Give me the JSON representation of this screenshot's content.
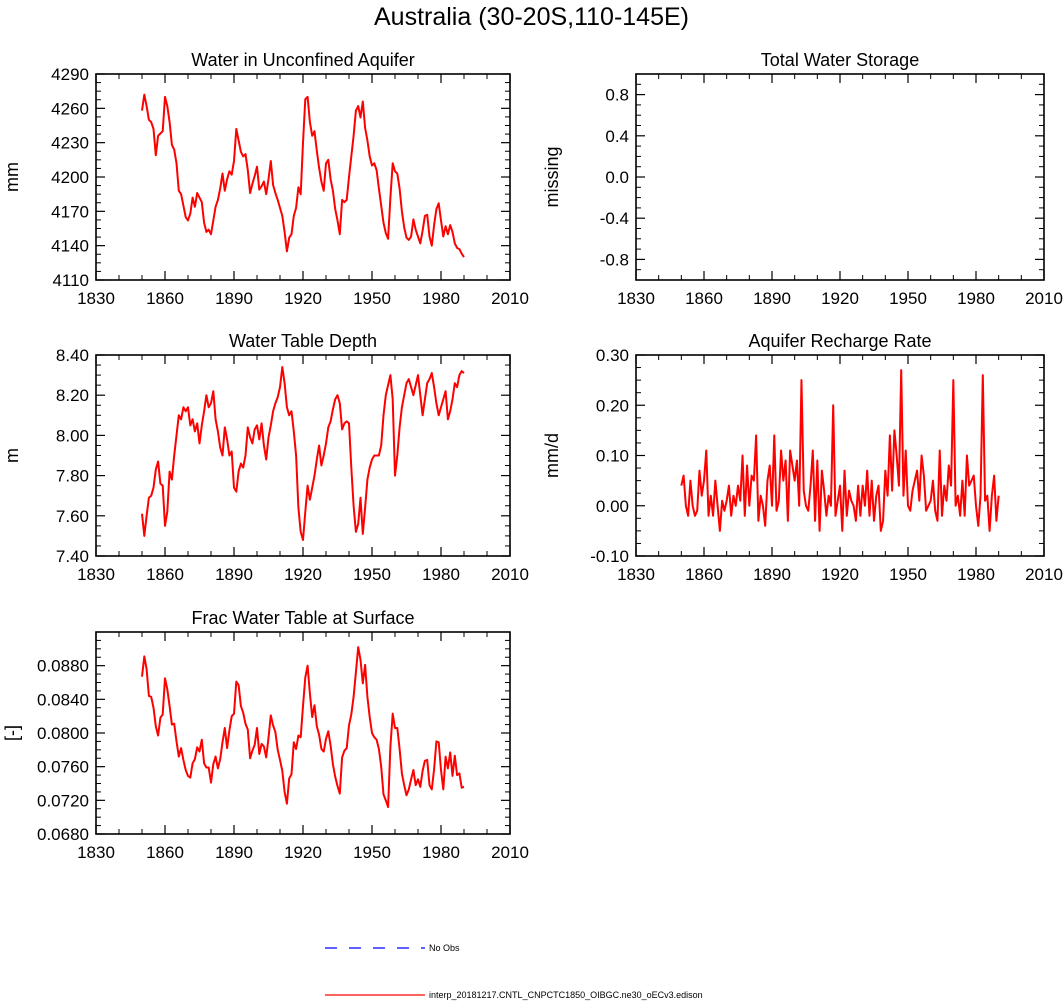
{
  "page": {
    "title": "Australia (30-20S,110-145E)"
  },
  "colors": {
    "series": "#ff0000",
    "obs": "#0000ff",
    "axis": "#000000",
    "background": "#ffffff"
  },
  "legend": {
    "entries": [
      {
        "label": "No Obs",
        "color": "#0000ff",
        "style": "dashed"
      },
      {
        "label": "interp_20181217.CNTL_CNPCTC1850_OIBGC.ne30_oECv3.edison",
        "color": "#ff0000",
        "style": "solid"
      }
    ]
  },
  "chart_data": [
    {
      "id": "water-unconfined-aquifer",
      "type": "line",
      "title": "Water in Unconfined Aquifer",
      "xlabel": "",
      "ylabel": "mm",
      "xlim": [
        1830,
        2010
      ],
      "ylim": [
        4110,
        4290
      ],
      "xticks": [
        1830,
        1860,
        1890,
        1920,
        1950,
        1980,
        2010
      ],
      "yticks": [
        "4110",
        "4140",
        "4170",
        "4200",
        "4230",
        "4260",
        "4290"
      ],
      "yticks_values": [
        4110,
        4140,
        4170,
        4200,
        4230,
        4260,
        4290
      ],
      "series": [
        {
          "name": "interp_20181217.CNTL_CNPCTC1850_OIBGC.ne30_oECv3.edison",
          "x_start": 1850,
          "x_step": 1,
          "values": [
            4258,
            4272,
            4262,
            4250,
            4248,
            4242,
            4219,
            4236,
            4238,
            4240,
            4270,
            4262,
            4248,
            4228,
            4224,
            4212,
            4188,
            4185,
            4175,
            4165,
            4162,
            4168,
            4182,
            4174,
            4186,
            4182,
            4178,
            4160,
            4152,
            4154,
            4150,
            4162,
            4174,
            4180,
            4190,
            4203,
            4188,
            4198,
            4205,
            4202,
            4214,
            4242,
            4232,
            4222,
            4218,
            4220,
            4206,
            4186,
            4194,
            4201,
            4209,
            4189,
            4192,
            4196,
            4185,
            4198,
            4214,
            4193,
            4186,
            4180,
            4173,
            4166,
            4152,
            4135,
            4147,
            4150,
            4166,
            4173,
            4191,
            4185,
            4230,
            4268,
            4270,
            4248,
            4236,
            4240,
            4223,
            4208,
            4196,
            4188,
            4212,
            4215,
            4198,
            4188,
            4172,
            4162,
            4150,
            4180,
            4178,
            4180,
            4200,
            4218,
            4236,
            4258,
            4262,
            4252,
            4266,
            4243,
            4232,
            4218,
            4210,
            4212,
            4206,
            4190,
            4175,
            4160,
            4151,
            4146,
            4182,
            4212,
            4205,
            4203,
            4190,
            4170,
            4156,
            4147,
            4145,
            4148,
            4163,
            4154,
            4148,
            4142,
            4153,
            4166,
            4167,
            4148,
            4140,
            4158,
            4172,
            4177,
            4162,
            4148,
            4157,
            4150,
            4158,
            4152,
            4142,
            4138,
            4137,
            4133,
            4130
          ]
        }
      ]
    },
    {
      "id": "total-water-storage",
      "type": "line",
      "title": "Total Water Storage",
      "xlabel": "",
      "ylabel": "missing",
      "xlim": [
        1830,
        2010
      ],
      "ylim": [
        -1.0,
        1.0
      ],
      "xticks": [
        1830,
        1860,
        1890,
        1920,
        1950,
        1980,
        2010
      ],
      "yticks": [
        "-0.8",
        "-0.4",
        "0.0",
        "0.4",
        "0.8"
      ],
      "yticks_values": [
        -0.8,
        -0.4,
        0.0,
        0.4,
        0.8
      ],
      "series": []
    },
    {
      "id": "water-table-depth",
      "type": "line",
      "title": "Water Table Depth",
      "xlabel": "",
      "ylabel": "m",
      "xlim": [
        1830,
        2010
      ],
      "ylim": [
        7.4,
        8.4
      ],
      "xticks": [
        1830,
        1860,
        1890,
        1920,
        1950,
        1980,
        2010
      ],
      "yticks": [
        "7.40",
        "7.60",
        "7.80",
        "8.00",
        "8.20",
        "8.40"
      ],
      "yticks_values": [
        7.4,
        7.6,
        7.8,
        8.0,
        8.2,
        8.4
      ],
      "series": [
        {
          "name": "interp_20181217.CNTL_CNPCTC1850_OIBGC.ne30_oECv3.edison",
          "x_start": 1850,
          "x_step": 1,
          "values": [
            7.61,
            7.5,
            7.6,
            7.69,
            7.7,
            7.74,
            7.83,
            7.87,
            7.76,
            7.75,
            7.55,
            7.62,
            7.82,
            7.78,
            7.9,
            8.0,
            8.1,
            8.08,
            8.14,
            8.12,
            8.14,
            8.05,
            8.08,
            8.02,
            8.06,
            7.96,
            8.05,
            8.12,
            8.2,
            8.14,
            8.16,
            8.22,
            8.08,
            8.02,
            7.94,
            7.9,
            8.04,
            7.98,
            7.9,
            7.92,
            7.74,
            7.72,
            7.82,
            7.86,
            7.84,
            7.9,
            8.04,
            7.99,
            7.96,
            8.03,
            8.05,
            7.98,
            8.06,
            7.95,
            7.88,
            7.99,
            8.05,
            8.12,
            8.16,
            8.19,
            8.24,
            8.34,
            8.26,
            8.14,
            8.1,
            8.12,
            8.02,
            7.9,
            7.64,
            7.52,
            7.48,
            7.62,
            7.75,
            7.68,
            7.74,
            7.8,
            7.88,
            7.95,
            7.85,
            7.9,
            7.96,
            8.04,
            8.07,
            8.13,
            8.18,
            8.2,
            8.16,
            8.03,
            8.06,
            8.07,
            8.06,
            7.84,
            7.65,
            7.52,
            7.56,
            7.69,
            7.51,
            7.64,
            7.78,
            7.84,
            7.88,
            7.9,
            7.9,
            7.9,
            7.95,
            8.1,
            8.2,
            8.25,
            8.3,
            8.18,
            7.8,
            7.9,
            8.04,
            8.14,
            8.2,
            8.26,
            8.28,
            8.24,
            8.2,
            8.25,
            8.3,
            8.2,
            8.1,
            8.18,
            8.26,
            8.28,
            8.31,
            8.24,
            8.16,
            8.1,
            8.14,
            8.18,
            8.22,
            8.08,
            8.12,
            8.18,
            8.26,
            8.24,
            8.3,
            8.32,
            8.31
          ]
        }
      ]
    },
    {
      "id": "aquifer-recharge-rate",
      "type": "line",
      "title": "Aquifer Recharge Rate",
      "xlabel": "",
      "ylabel": "mm/d",
      "xlim": [
        1830,
        2010
      ],
      "ylim": [
        -0.1,
        0.3
      ],
      "xticks": [
        1830,
        1860,
        1890,
        1920,
        1950,
        1980,
        2010
      ],
      "yticks": [
        "-0.10",
        "0.00",
        "0.10",
        "0.20",
        "0.30"
      ],
      "yticks_values": [
        -0.1,
        0.0,
        0.1,
        0.2,
        0.3
      ],
      "series": [
        {
          "name": "interp_20181217.CNTL_CNPCTC1850_OIBGC.ne30_oECv3.edison",
          "x_start": 1850,
          "x_step": 1,
          "values": [
            0.04,
            0.06,
            0.0,
            -0.02,
            0.05,
            0.0,
            -0.02,
            -0.01,
            0.07,
            0.02,
            0.05,
            0.11,
            -0.02,
            0.02,
            -0.02,
            0.05,
            0.0,
            -0.05,
            0.01,
            -0.01,
            0.01,
            0.04,
            -0.02,
            0.02,
            0.0,
            0.04,
            0.01,
            0.1,
            -0.02,
            0.08,
            0.0,
            0.06,
            0.05,
            0.14,
            -0.03,
            0.02,
            0.0,
            -0.04,
            0.05,
            0.08,
            0.0,
            0.14,
            -0.01,
            0.01,
            0.11,
            0.05,
            0.09,
            -0.03,
            0.11,
            0.08,
            0.05,
            0.09,
            0.0,
            0.25,
            0.03,
            0.0,
            -0.01,
            0.04,
            0.11,
            -0.03,
            0.09,
            -0.05,
            0.07,
            0.03,
            -0.02,
            0.02,
            0.0,
            0.2,
            -0.02,
            0.01,
            0.04,
            -0.05,
            0.07,
            -0.02,
            0.03,
            0.01,
            0.0,
            -0.03,
            0.04,
            -0.02,
            0.04,
            0.0,
            0.07,
            -0.02,
            0.05,
            -0.03,
            0.02,
            0.04,
            -0.05,
            -0.03,
            0.07,
            0.02,
            0.14,
            0.03,
            0.15,
            0.1,
            0.04,
            0.27,
            0.02,
            0.11,
            0.0,
            -0.01,
            0.03,
            0.05,
            0.07,
            0.01,
            0.1,
            0.06,
            -0.01,
            0.0,
            0.01,
            0.05,
            -0.01,
            -0.03,
            0.11,
            -0.02,
            0.04,
            0.01,
            0.08,
            0.04,
            0.25,
            0.0,
            0.02,
            -0.02,
            0.05,
            -0.02,
            0.1,
            0.04,
            0.05,
            0.06,
            0.0,
            -0.04,
            0.02,
            0.26,
            0.01,
            0.02,
            -0.05,
            0.02,
            0.06,
            -0.03,
            0.02
          ]
        }
      ]
    },
    {
      "id": "frac-water-table-surface",
      "type": "line",
      "title": "Frac Water Table at Surface",
      "xlabel": "",
      "ylabel": "[-]",
      "xlim": [
        1830,
        2010
      ],
      "ylim": [
        0.068,
        0.092
      ],
      "xticks": [
        1830,
        1860,
        1890,
        1920,
        1950,
        1980,
        2010
      ],
      "yticks": [
        "0.0680",
        "0.0720",
        "0.0760",
        "0.0800",
        "0.0840",
        "0.0880"
      ],
      "yticks_values": [
        0.068,
        0.072,
        0.076,
        0.08,
        0.084,
        0.088
      ],
      "series": [
        {
          "name": "interp_20181217.CNTL_CNPCTC1850_OIBGC.ne30_oECv3.edison",
          "x_start": 1850,
          "x_step": 1,
          "values": [
            0.0867,
            0.0891,
            0.0876,
            0.0844,
            0.0843,
            0.083,
            0.0808,
            0.0797,
            0.0818,
            0.0822,
            0.0865,
            0.0852,
            0.0832,
            0.081,
            0.0811,
            0.079,
            0.0772,
            0.0782,
            0.0768,
            0.0756,
            0.0749,
            0.0747,
            0.0764,
            0.0769,
            0.0783,
            0.0778,
            0.0792,
            0.0764,
            0.0759,
            0.0759,
            0.0741,
            0.0763,
            0.0772,
            0.0758,
            0.0769,
            0.0789,
            0.0806,
            0.0782,
            0.0803,
            0.082,
            0.0823,
            0.0861,
            0.0857,
            0.0832,
            0.0824,
            0.0811,
            0.0804,
            0.077,
            0.0779,
            0.0786,
            0.0806,
            0.0775,
            0.0787,
            0.0784,
            0.0771,
            0.0794,
            0.0821,
            0.0809,
            0.0801,
            0.078,
            0.0768,
            0.0755,
            0.073,
            0.0716,
            0.0746,
            0.0751,
            0.0789,
            0.0781,
            0.0797,
            0.0795,
            0.0832,
            0.0866,
            0.088,
            0.0847,
            0.0819,
            0.0833,
            0.0808,
            0.0798,
            0.0781,
            0.0778,
            0.0793,
            0.0802,
            0.0785,
            0.0763,
            0.0748,
            0.0737,
            0.0728,
            0.0771,
            0.0779,
            0.0782,
            0.0809,
            0.0822,
            0.0843,
            0.0872,
            0.0902,
            0.0887,
            0.0859,
            0.0881,
            0.0843,
            0.0819,
            0.08,
            0.0795,
            0.0792,
            0.0781,
            0.076,
            0.0727,
            0.072,
            0.0712,
            0.0784,
            0.0823,
            0.0806,
            0.0806,
            0.0781,
            0.0752,
            0.0738,
            0.0726,
            0.0733,
            0.0745,
            0.0756,
            0.0738,
            0.0745,
            0.0736,
            0.0755,
            0.0767,
            0.0768,
            0.0738,
            0.0733,
            0.0757,
            0.079,
            0.0789,
            0.0756,
            0.0733,
            0.0772,
            0.0758,
            0.0777,
            0.0749,
            0.0773,
            0.075,
            0.0752,
            0.0735,
            0.0736
          ]
        }
      ]
    }
  ]
}
